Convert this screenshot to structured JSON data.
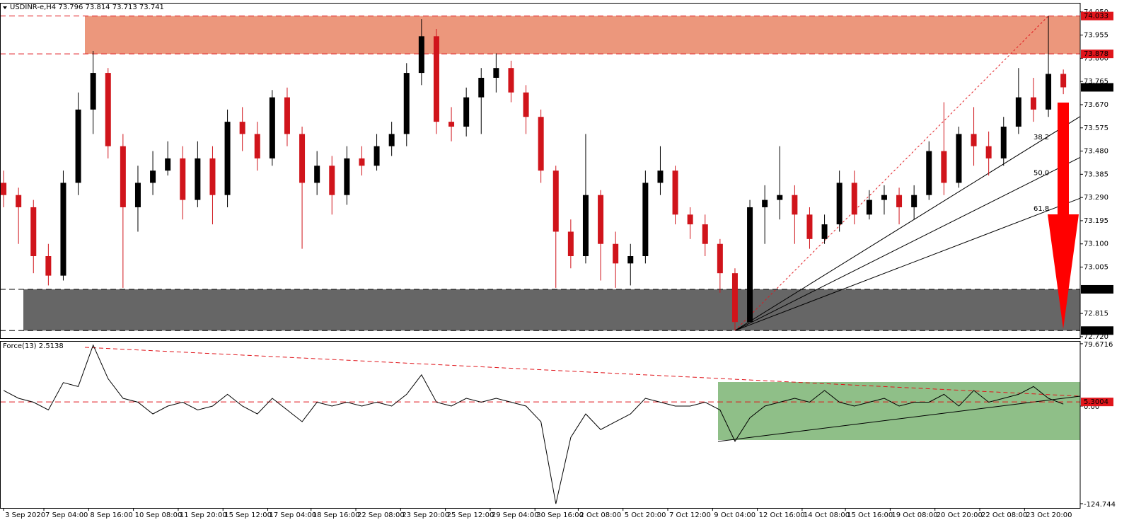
{
  "chart_data": {
    "type": "candlestick",
    "title": "USDINR-e,H4",
    "up_color": "#000000",
    "down_color": "#d0141b",
    "open": [
      73.35,
      73.3,
      73.25,
      73.05,
      72.97,
      73.35,
      73.65,
      73.8,
      73.5,
      73.25,
      73.35,
      73.4,
      73.45,
      73.28,
      73.45,
      73.3,
      73.6,
      73.55,
      73.45,
      73.7,
      73.55,
      73.35,
      73.42,
      73.3,
      73.45,
      73.42,
      73.5,
      73.55,
      73.8,
      73.95,
      73.6,
      73.58,
      73.7,
      73.78,
      73.82,
      73.72,
      73.62,
      73.4,
      73.15,
      73.05,
      73.3,
      73.1,
      73.02,
      73.05,
      73.35,
      73.4,
      73.22,
      73.18,
      73.1,
      72.98,
      72.78,
      73.25,
      73.28,
      73.3,
      73.22,
      73.12,
      73.18,
      73.35,
      73.22,
      73.28,
      73.3,
      73.25,
      73.3,
      73.48,
      73.35,
      73.55,
      73.5,
      73.45,
      73.58,
      73.7,
      73.65,
      73.796
    ],
    "high": [
      73.4,
      73.33,
      73.28,
      73.1,
      73.4,
      73.72,
      73.89,
      73.82,
      73.55,
      73.42,
      73.48,
      73.52,
      73.5,
      73.52,
      73.5,
      73.65,
      73.66,
      73.6,
      73.73,
      73.74,
      73.58,
      73.48,
      73.46,
      73.5,
      73.5,
      73.55,
      73.6,
      73.84,
      74.02,
      73.98,
      73.66,
      73.74,
      73.82,
      73.88,
      73.85,
      73.75,
      73.65,
      73.42,
      73.2,
      73.55,
      73.32,
      73.15,
      73.1,
      73.4,
      73.5,
      73.42,
      73.25,
      73.22,
      73.12,
      73.0,
      73.28,
      73.34,
      73.5,
      73.34,
      73.25,
      73.22,
      73.4,
      73.4,
      73.32,
      73.34,
      73.33,
      73.34,
      73.52,
      73.68,
      73.58,
      73.66,
      73.56,
      73.62,
      73.82,
      73.78,
      74.033,
      73.814
    ],
    "low": [
      73.25,
      73.1,
      72.98,
      72.93,
      72.95,
      73.3,
      73.55,
      73.45,
      72.92,
      73.15,
      73.3,
      73.38,
      73.2,
      73.25,
      73.18,
      73.25,
      73.48,
      73.4,
      73.42,
      73.5,
      73.08,
      73.3,
      73.22,
      73.26,
      73.38,
      73.4,
      73.46,
      73.5,
      73.75,
      73.55,
      73.52,
      73.54,
      73.55,
      73.72,
      73.68,
      73.55,
      73.35,
      72.92,
      73.0,
      73.02,
      72.95,
      72.92,
      72.93,
      73.02,
      73.3,
      73.18,
      73.12,
      73.05,
      72.9,
      72.745,
      72.78,
      73.1,
      73.2,
      73.1,
      73.08,
      73.1,
      73.15,
      73.18,
      73.2,
      73.22,
      73.18,
      73.2,
      73.28,
      73.3,
      73.33,
      73.42,
      73.38,
      73.42,
      73.55,
      73.6,
      73.62,
      73.713
    ],
    "close": [
      73.3,
      73.25,
      73.05,
      72.97,
      73.35,
      73.65,
      73.8,
      73.5,
      73.25,
      73.35,
      73.4,
      73.45,
      73.28,
      73.45,
      73.3,
      73.6,
      73.55,
      73.45,
      73.7,
      73.55,
      73.35,
      73.42,
      73.3,
      73.45,
      73.42,
      73.5,
      73.55,
      73.8,
      73.95,
      73.6,
      73.58,
      73.7,
      73.78,
      73.82,
      73.72,
      73.62,
      73.4,
      73.15,
      73.05,
      73.3,
      73.1,
      73.02,
      73.05,
      73.35,
      73.4,
      73.22,
      73.18,
      73.1,
      72.98,
      72.78,
      73.25,
      73.28,
      73.3,
      73.22,
      73.12,
      73.18,
      73.35,
      73.22,
      73.28,
      73.3,
      73.25,
      73.3,
      73.48,
      73.35,
      73.55,
      73.5,
      73.45,
      73.58,
      73.7,
      73.65,
      73.796,
      73.741
    ],
    "xlim": [
      -0.24,
      72.13
    ],
    "xticks": [
      {
        "value": 0,
        "label": "3 Sep 2020"
      },
      {
        "value": 2.7,
        "label": "7 Sep 04:00"
      },
      {
        "value": 5.7,
        "label": "8 Sep 16:00"
      },
      {
        "value": 8.7,
        "label": "10 Sep 08:00"
      },
      {
        "value": 11.7,
        "label": "11 Sep 20:00"
      },
      {
        "value": 14.7,
        "label": "15 Sep 12:00"
      },
      {
        "value": 17.7,
        "label": "17 Sep 04:00"
      },
      {
        "value": 20.6,
        "label": "18 Sep 16:00"
      },
      {
        "value": 23.6,
        "label": "22 Sep 08:00"
      },
      {
        "value": 26.6,
        "label": "23 Sep 20:00"
      },
      {
        "value": 29.6,
        "label": "25 Sep 12:00"
      },
      {
        "value": 32.6,
        "label": "29 Sep 04:00"
      },
      {
        "value": 35.6,
        "label": "30 Sep 16:00"
      },
      {
        "value": 38.5,
        "label": "2 Oct 08:00"
      },
      {
        "value": 41.5,
        "label": "5 Oct 20:00"
      },
      {
        "value": 44.5,
        "label": "7 Oct 12:00"
      },
      {
        "value": 47.5,
        "label": "9 Oct 04:00"
      },
      {
        "value": 50.5,
        "label": "12 Oct 16:00"
      },
      {
        "value": 53.5,
        "label": "14 Oct 08:00"
      },
      {
        "value": 56.4,
        "label": "15 Oct 16:00"
      },
      {
        "value": 59.4,
        "label": "19 Oct 08:00"
      },
      {
        "value": 62.4,
        "label": "20 Oct 20:00"
      },
      {
        "value": 65.4,
        "label": "22 Oct 08:00"
      },
      {
        "value": 68.4,
        "label": "23 Oct 20:00"
      }
    ],
    "ylim": [
      72.714,
      74.087
    ],
    "yticks": [
      {
        "value": 74.05,
        "label": "74.050"
      },
      73.955,
      {
        "value": 73.86,
        "label": "73.860"
      },
      73.765,
      {
        "value": 73.67,
        "label": "73.670"
      },
      73.575,
      {
        "value": 73.48,
        "label": "73.480"
      },
      73.385,
      {
        "value": 73.29,
        "label": "73.290"
      },
      73.195,
      {
        "value": 73.1,
        "label": "73.100"
      },
      73.005,
      72.815,
      {
        "value": 72.72,
        "label": "72.720"
      }
    ],
    "zones": [
      {
        "low": 73.878,
        "high": 74.033,
        "color": "#ec977c",
        "line_color": "#e0151b"
      },
      {
        "low": 72.745,
        "high": 72.914,
        "color": "#666666",
        "line_color": "#000000"
      }
    ],
    "fib_fan": [
      38.2,
      {
        "value": 50,
        "label": "50.0"
      },
      61.8
    ],
    "indicator": {
      "name": "Force(13)",
      "values": [
        20,
        10,
        5,
        -5,
        30,
        25,
        78,
        35,
        10,
        5,
        -10,
        0,
        5,
        -5,
        0,
        15,
        0,
        -10,
        10,
        -5,
        -20,
        5,
        0,
        5,
        0,
        5,
        0,
        15,
        40,
        5,
        0,
        10,
        5,
        10,
        5,
        0,
        -20,
        -125,
        -40,
        -10,
        -30,
        -20,
        -10,
        10,
        5,
        0,
        0,
        5,
        -5,
        -45,
        -15,
        0,
        5,
        10,
        5,
        20,
        5,
        0,
        5,
        10,
        0,
        5,
        5,
        15,
        0,
        20,
        5,
        10,
        15,
        25,
        10,
        2.5138
      ],
      "ylim": [
        -130.2,
        83.2
      ],
      "yticks": [
        79.6716,
        {
          "value": 0,
          "label": "0.00"
        },
        -124.744
      ],
      "level": 5.3004,
      "level_color": "#e0151b"
    }
  }
}
